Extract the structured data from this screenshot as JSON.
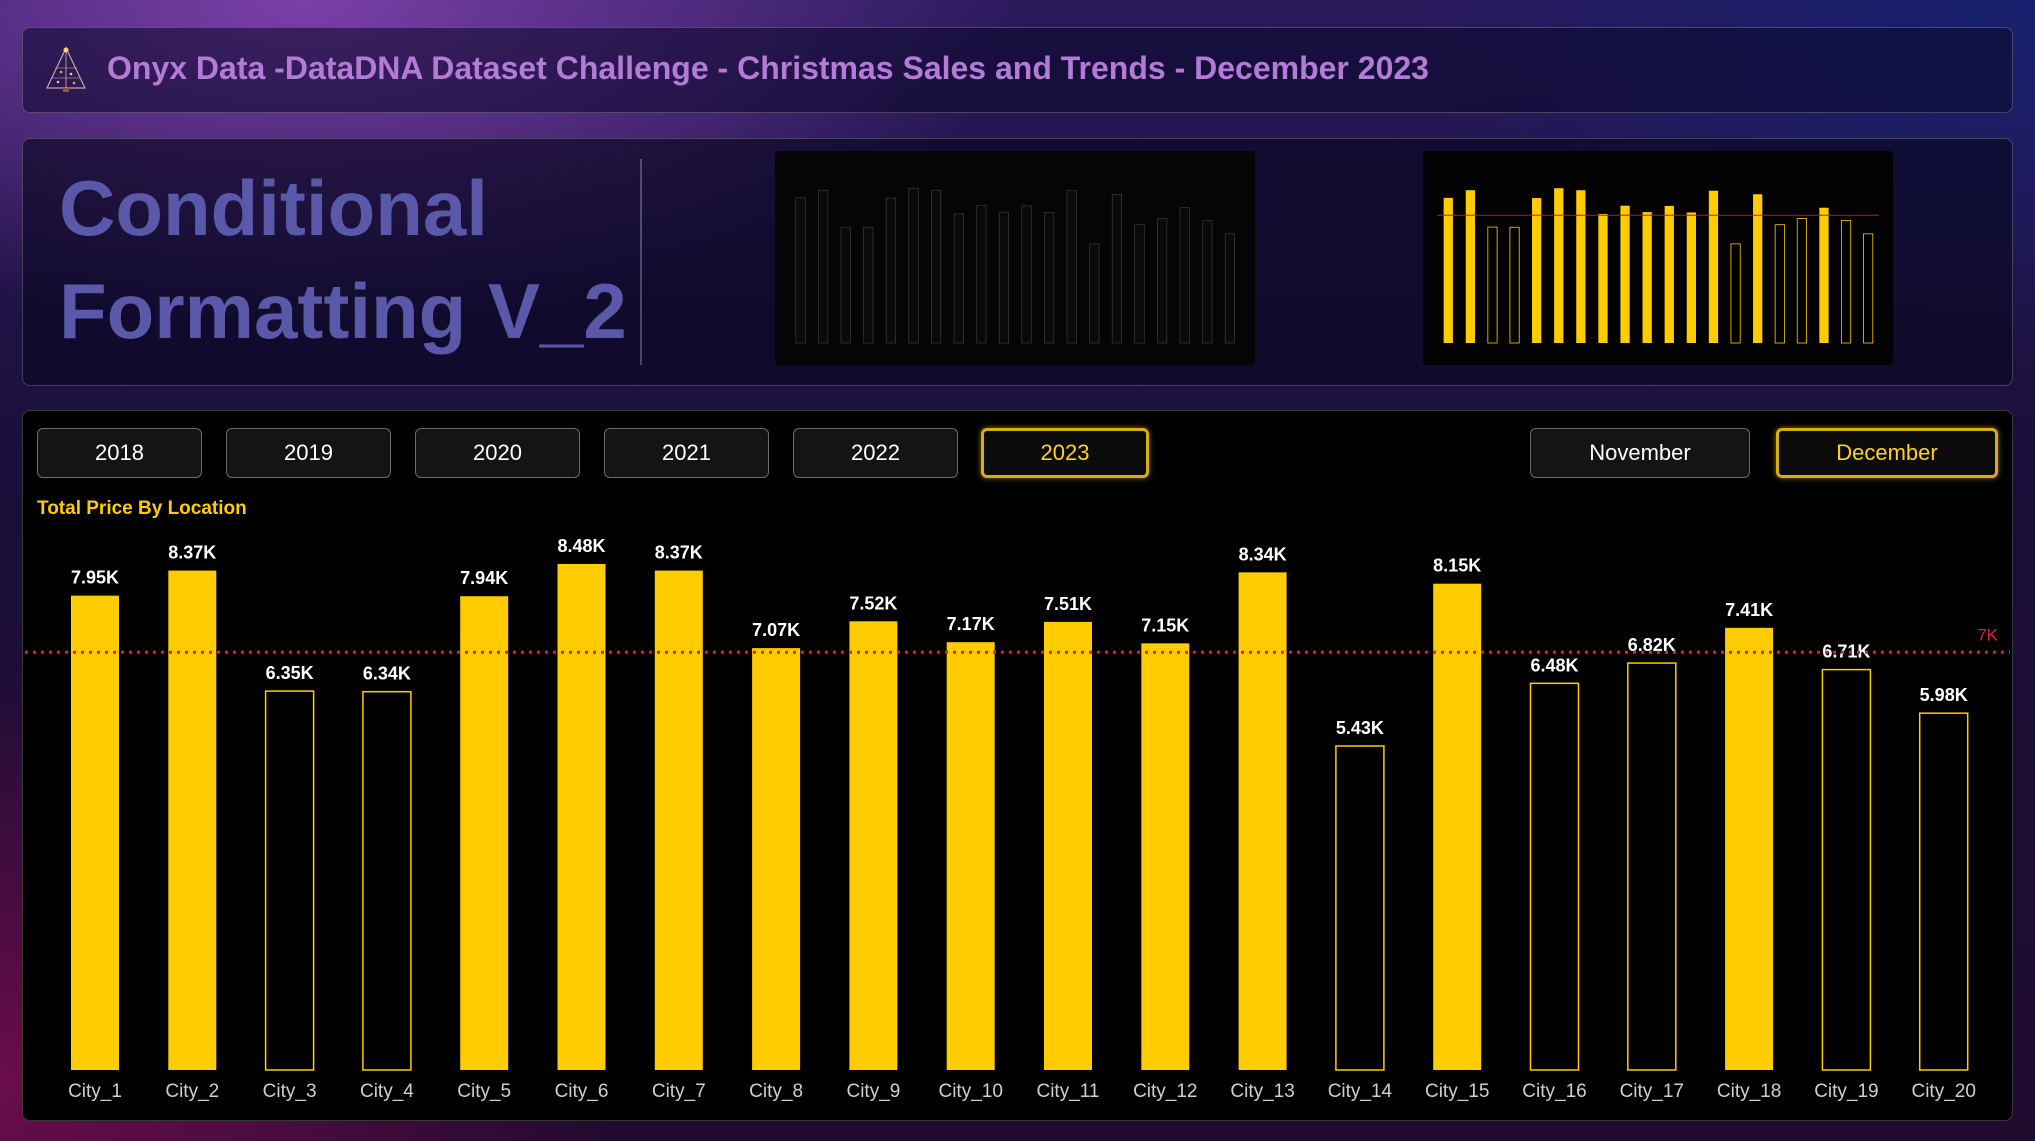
{
  "header": {
    "title": "Onyx Data -DataDNA Dataset Challenge - Christmas Sales and Trends - December 2023"
  },
  "title_panel": {
    "line1": "Conditional",
    "line2": "Formatting V_2"
  },
  "filters": {
    "years": [
      {
        "label": "2018",
        "selected": false
      },
      {
        "label": "2019",
        "selected": false
      },
      {
        "label": "2020",
        "selected": false
      },
      {
        "label": "2021",
        "selected": false
      },
      {
        "label": "2022",
        "selected": false
      },
      {
        "label": "2023",
        "selected": true
      }
    ],
    "months": [
      {
        "label": "November",
        "selected": false
      },
      {
        "label": "December",
        "selected": true
      }
    ]
  },
  "colors": {
    "accent": "#ffcc00",
    "target_line": "#e0202a",
    "selected_border": "#d9ac11"
  },
  "chart_data": {
    "type": "bar",
    "title": "Total Price By Location",
    "categories": [
      "City_1",
      "City_2",
      "City_3",
      "City_4",
      "City_5",
      "City_6",
      "City_7",
      "City_8",
      "City_9",
      "City_10",
      "City_11",
      "City_12",
      "City_13",
      "City_14",
      "City_15",
      "City_16",
      "City_17",
      "City_18",
      "City_19",
      "City_20"
    ],
    "values": [
      7950,
      8370,
      6350,
      6340,
      7940,
      8480,
      8370,
      7070,
      7520,
      7170,
      7510,
      7150,
      8340,
      5430,
      8150,
      6480,
      6820,
      7410,
      6710,
      5980
    ],
    "data_labels": [
      "7.95K",
      "8.37K",
      "6.35K",
      "6.34K",
      "7.94K",
      "8.48K",
      "8.37K",
      "7.07K",
      "7.52K",
      "7.17K",
      "7.51K",
      "7.15K",
      "8.34K",
      "5.43K",
      "8.15K",
      "6.48K",
      "6.82K",
      "7.41K",
      "6.71K",
      "5.98K"
    ],
    "reference_line": {
      "value": 7000,
      "label": "7K"
    },
    "ylim": [
      0,
      8480
    ],
    "rule": "bars at or above 7K filled yellow, below 7K outlined",
    "grid": false
  }
}
